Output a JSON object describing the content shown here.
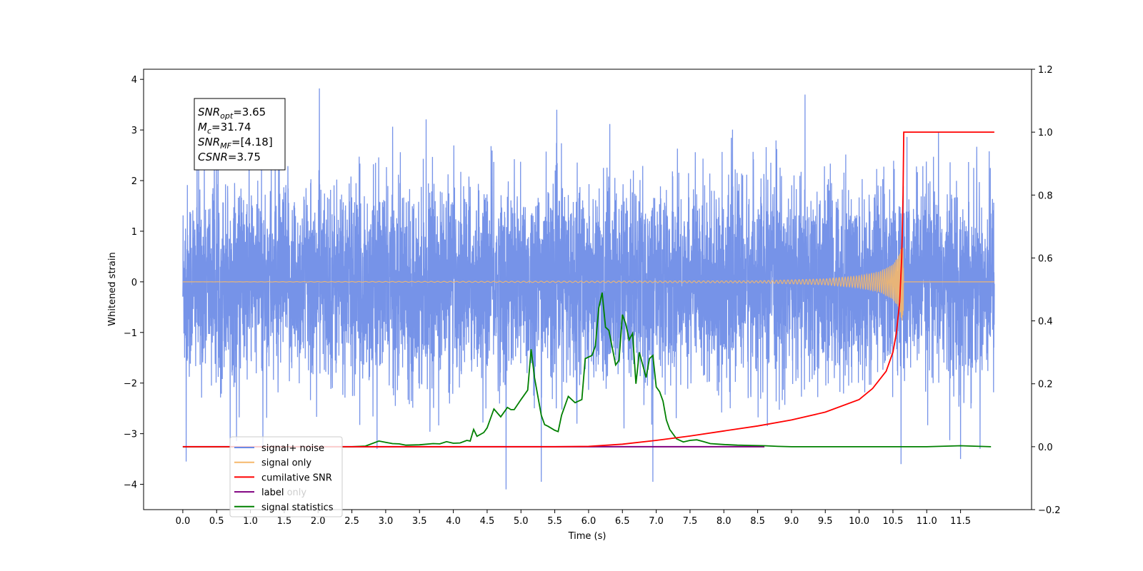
{
  "chart_data": {
    "type": "line",
    "xlabel": "Time (s)",
    "ylabel": "Whitened strain",
    "ylim": [
      -4.5,
      4.2
    ],
    "y2lim": [
      -0.2,
      1.2
    ],
    "xlim": [
      -0.58,
      12.55
    ],
    "x_ticks": [
      "0.0",
      "0.5",
      "1.0",
      "1.5",
      "2.0",
      "2.5",
      "3.0",
      "3.5",
      "4.0",
      "4.5",
      "5.0",
      "5.5",
      "6.0",
      "6.5",
      "7.0",
      "7.5",
      "8.0",
      "8.5",
      "9.0",
      "9.5",
      "10.0",
      "10.5",
      "11.0",
      "11.5"
    ],
    "y_ticks": [
      "−4",
      "−3",
      "−2",
      "−1",
      "0",
      "1",
      "2",
      "3",
      "4"
    ],
    "y2_ticks": [
      "−0.2",
      "0.0",
      "0.2",
      "0.4",
      "0.6",
      "0.8",
      "1.0",
      "1.2"
    ],
    "info_box": [
      {
        "base": "SNR",
        "sub": "opt",
        "rest": "=3.65"
      },
      {
        "base": "M",
        "sub": "c",
        "rest": "=31.74"
      },
      {
        "base": "SNR",
        "sub": "MF",
        "rest": "=[4.18]"
      },
      {
        "base": "CSNR",
        "sub": "",
        "rest": "=3.75"
      }
    ],
    "legend_position": "lower-left",
    "legend": [
      {
        "label": "signal+ noise",
        "color": "#6a8ae6"
      },
      {
        "label": "signal only",
        "color": "#f5b86b"
      },
      {
        "label": "cumilative SNR",
        "color": "#ff0000"
      },
      {
        "label": "label",
        "color": "#800080"
      },
      {
        "label": "signal statistics",
        "color": "#008000"
      }
    ],
    "legend_hidden_text": "label only",
    "series": [
      {
        "name": "signal+ noise",
        "axis": "left",
        "color": "#6a8ae6",
        "x_range": [
          0.0,
          12.0
        ],
        "envelope_typical": [
          -1.65,
          1.65
        ],
        "notable_extremes": [
          [
            0.05,
            -3.55
          ],
          [
            2.02,
            3.82
          ],
          [
            4.78,
            -4.1
          ],
          [
            5.3,
            -3.95
          ],
          [
            6.95,
            -3.95
          ],
          [
            9.2,
            3.7
          ],
          [
            10.62,
            -3.6
          ],
          [
            11.5,
            -3.5
          ]
        ]
      },
      {
        "name": "signal only",
        "axis": "left",
        "color": "#f5b86b",
        "x": [
          0.0,
          8.5,
          9.5,
          10.0,
          10.3,
          10.5,
          10.6,
          10.65,
          10.66,
          12.0
        ],
        "amplitude": [
          0.0,
          0.02,
          0.06,
          0.12,
          0.2,
          0.35,
          0.55,
          0.9,
          0.0,
          0.0
        ]
      },
      {
        "name": "cumilative SNR",
        "axis": "right",
        "color": "#ff0000",
        "x": [
          0.0,
          4.0,
          5.5,
          6.0,
          6.5,
          7.0,
          7.5,
          8.0,
          8.5,
          9.0,
          9.5,
          10.0,
          10.2,
          10.4,
          10.5,
          10.55,
          10.6,
          10.63,
          10.65,
          10.66,
          12.0
        ],
        "y": [
          0.0,
          0.0,
          0.0,
          0.001,
          0.008,
          0.02,
          0.034,
          0.05,
          0.066,
          0.085,
          0.11,
          0.15,
          0.185,
          0.24,
          0.3,
          0.36,
          0.46,
          0.6,
          0.8,
          1.0,
          1.0
        ]
      },
      {
        "name": "label",
        "axis": "right",
        "color": "#800080",
        "x": [
          0.0,
          8.6
        ],
        "y": [
          0.0,
          0.0
        ]
      },
      {
        "name": "signal statistics",
        "axis": "right",
        "color": "#008000",
        "x": [
          0.0,
          0.5,
          1.0,
          1.5,
          2.0,
          2.5,
          2.7,
          2.9,
          3.0,
          3.1,
          3.2,
          3.3,
          3.5,
          3.7,
          3.8,
          3.9,
          4.0,
          4.1,
          4.2,
          4.25,
          4.3,
          4.35,
          4.45,
          4.5,
          4.6,
          4.7,
          4.8,
          4.85,
          4.9,
          5.0,
          5.1,
          5.15,
          5.2,
          5.3,
          5.35,
          5.4,
          5.5,
          5.55,
          5.6,
          5.7,
          5.8,
          5.9,
          5.95,
          6.05,
          6.1,
          6.15,
          6.2,
          6.25,
          6.3,
          6.4,
          6.45,
          6.5,
          6.55,
          6.6,
          6.65,
          6.7,
          6.75,
          6.8,
          6.85,
          6.9,
          6.95,
          7.0,
          7.05,
          7.1,
          7.15,
          7.2,
          7.3,
          7.4,
          7.5,
          7.6,
          7.7,
          7.8,
          8.0,
          8.2,
          8.4,
          8.6,
          8.8,
          9.0,
          10.0,
          11.0,
          11.5,
          11.95
        ],
        "y": [
          0.0,
          0.0,
          0.0,
          0.0,
          0.0,
          0.0,
          0.002,
          0.018,
          0.014,
          0.01,
          0.009,
          0.005,
          0.006,
          0.01,
          0.009,
          0.016,
          0.011,
          0.012,
          0.02,
          0.018,
          0.055,
          0.033,
          0.045,
          0.06,
          0.12,
          0.095,
          0.125,
          0.118,
          0.118,
          0.15,
          0.18,
          0.31,
          0.22,
          0.1,
          0.07,
          0.065,
          0.052,
          0.048,
          0.1,
          0.16,
          0.14,
          0.15,
          0.28,
          0.29,
          0.32,
          0.44,
          0.49,
          0.38,
          0.37,
          0.26,
          0.275,
          0.42,
          0.39,
          0.34,
          0.36,
          0.2,
          0.3,
          0.26,
          0.22,
          0.28,
          0.29,
          0.19,
          0.175,
          0.145,
          0.085,
          0.055,
          0.025,
          0.015,
          0.02,
          0.022,
          0.016,
          0.01,
          0.007,
          0.005,
          0.004,
          0.003,
          0.001,
          0.0,
          0.0,
          0.0,
          0.003,
          0.0
        ]
      }
    ]
  }
}
